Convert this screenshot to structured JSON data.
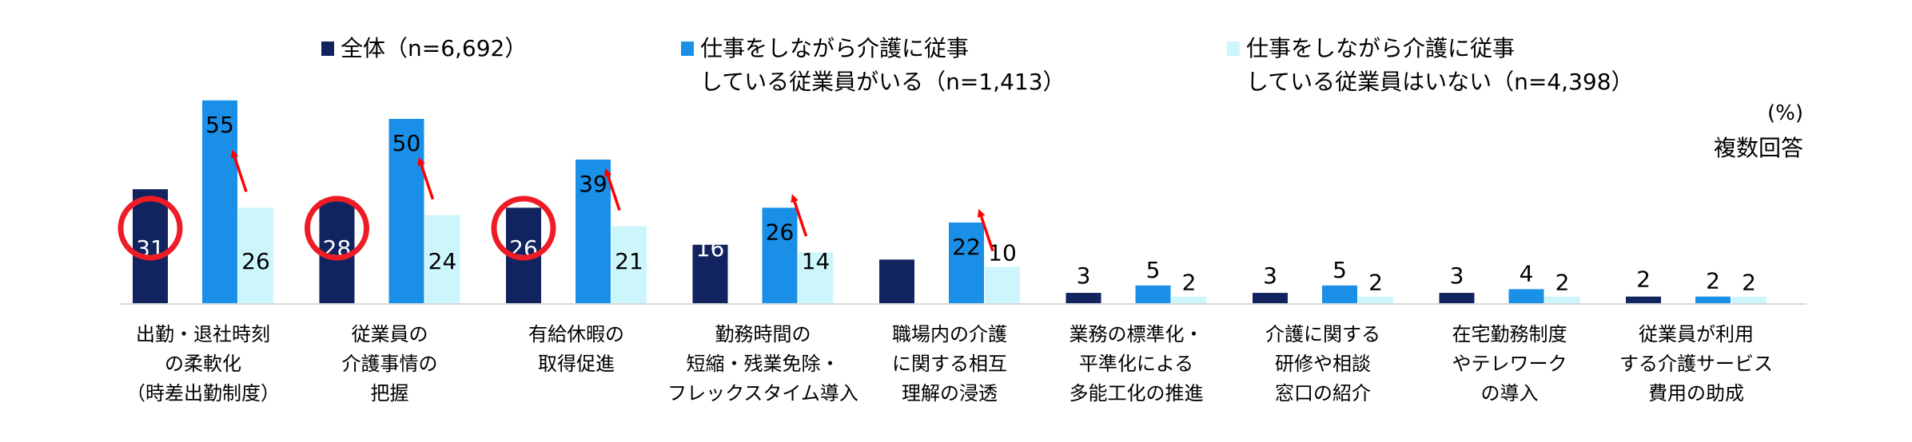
{
  "chart_data": {
    "type": "bar",
    "unit_label": "(%)",
    "note": "複数回答",
    "categories": [
      [
        "出勤・退社時刻",
        "の柔軟化",
        "（時差出勤制度）"
      ],
      [
        "従業員の",
        "介護事情の",
        "把握"
      ],
      [
        "有給休暇の",
        "取得促進"
      ],
      [
        "勤務時間の",
        "短縮・残業免除・",
        "フレックスタイム導入"
      ],
      [
        "職場内の介護",
        "に関する相互",
        "理解の浸透"
      ],
      [
        "業務の標準化・",
        "平準化による",
        "多能工化の推進"
      ],
      [
        "介護に関する",
        "研修や相談",
        "窓口の紹介"
      ],
      [
        "在宅勤務制度",
        "やテレワーク",
        "の導入"
      ],
      [
        "従業員が利用",
        "する介護サービス",
        "費用の助成"
      ]
    ],
    "series": [
      {
        "name": "全体（n=6,692）",
        "name_lines": [
          "全体（n=6,692）"
        ],
        "color": "#12245f",
        "label_color": "#ffffff",
        "values": [
          31,
          28,
          26,
          16,
          12,
          3,
          3,
          3,
          2
        ]
      },
      {
        "name": "仕事をしながら介護に従事している従業員がいる（n=1,413）",
        "name_lines": [
          "仕事をしながら介護に従事",
          "している従業員がいる（n=1,413）"
        ],
        "color": "#1a8fe8",
        "label_color": "#000000",
        "values": [
          55,
          50,
          39,
          26,
          22,
          5,
          5,
          4,
          2
        ]
      },
      {
        "name": "仕事をしながら介護に従事している従業員はいない（n=4,398）",
        "name_lines": [
          "仕事をしながら介護に従事",
          "している従業員はいない（n=4,398）"
        ],
        "color": "#cdf6fc",
        "label_color": "#000000",
        "values": [
          26,
          24,
          21,
          14,
          10,
          2,
          2,
          2,
          2
        ]
      }
    ],
    "highlight_circles_on_series0": [
      0,
      1,
      2
    ],
    "arrows_between_series2_and_series1": [
      0,
      1,
      2,
      3,
      4
    ],
    "ylim": [
      0,
      60
    ],
    "legend_position": "top",
    "grid": false
  }
}
